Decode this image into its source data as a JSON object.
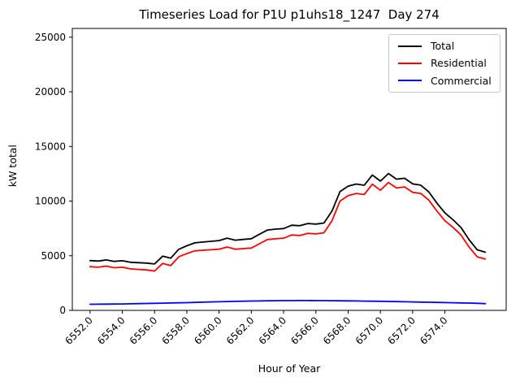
{
  "chart_data": {
    "type": "line",
    "title": "Timeseries Load for P1U p1uhs18_1247  Day 274",
    "xlabel": "Hour of Year",
    "ylabel": "kW total",
    "grid": false,
    "legend_position": "upper right",
    "xlim": [
      6550.9,
      6577.8
    ],
    "ylim": [
      0,
      25800
    ],
    "xtick_values": [
      6552,
      6554,
      6556,
      6558,
      6560,
      6562,
      6564,
      6566,
      6568,
      6570,
      6572,
      6574
    ],
    "xtick_labels": [
      "6552.0",
      "6554.0",
      "6556.0",
      "6558.0",
      "6560.0",
      "6562.0",
      "6564.0",
      "6566.0",
      "6568.0",
      "6570.0",
      "6572.0",
      "6574.0"
    ],
    "ytick_values": [
      0,
      5000,
      10000,
      15000,
      20000,
      25000
    ],
    "ytick_labels": [
      "0",
      "5000",
      "10000",
      "15000",
      "20000",
      "25000"
    ],
    "x": [
      6552.0,
      6552.5,
      6553.0,
      6553.5,
      6554.0,
      6554.5,
      6555.0,
      6555.5,
      6556.0,
      6556.5,
      6557.0,
      6557.5,
      6558.0,
      6558.5,
      6559.0,
      6559.5,
      6560.0,
      6560.5,
      6561.0,
      6561.5,
      6562.0,
      6562.5,
      6563.0,
      6563.5,
      6564.0,
      6564.5,
      6565.0,
      6565.5,
      6566.0,
      6566.5,
      6567.0,
      6567.5,
      6568.0,
      6568.5,
      6569.0,
      6569.5,
      6570.0,
      6570.5,
      6571.0,
      6571.5,
      6572.0,
      6572.5,
      6573.0,
      6573.5,
      6574.0,
      6574.5,
      6575.0,
      6575.5,
      6576.0,
      6576.5
    ],
    "series": [
      {
        "name": "Total",
        "color": "#000000",
        "values": [
          4560,
          4515,
          4620,
          4480,
          4540,
          4400,
          4365,
          4330,
          4245,
          4960,
          4775,
          5590,
          5910,
          6180,
          6250,
          6320,
          6390,
          6610,
          6425,
          6490,
          6555,
          6965,
          7355,
          7435,
          7490,
          7795,
          7750,
          7950,
          7895,
          7990,
          9085,
          10880,
          11370,
          11560,
          11450,
          12390,
          11830,
          12520,
          12005,
          12090,
          11575,
          11460,
          10845,
          9830,
          8915,
          8300,
          7585,
          6470,
          5550,
          5320
        ]
      },
      {
        "name": "Residential",
        "color": "#ff0000",
        "values": [
          4000,
          3950,
          4050,
          3900,
          3950,
          3800,
          3750,
          3700,
          3600,
          4300,
          4100,
          4900,
          5200,
          5450,
          5500,
          5550,
          5600,
          5800,
          5600,
          5650,
          5700,
          6100,
          6480,
          6550,
          6600,
          6900,
          6850,
          7050,
          7000,
          7100,
          8200,
          10000,
          10500,
          10700,
          10600,
          11550,
          11000,
          11700,
          11200,
          11300,
          10800,
          10700,
          10100,
          9100,
          8200,
          7600,
          6900,
          5800,
          4900,
          4700
        ]
      },
      {
        "name": "Commercial",
        "color": "#0000ff",
        "values": [
          560,
          565,
          570,
          580,
          590,
          600,
          615,
          630,
          645,
          660,
          675,
          690,
          710,
          730,
          750,
          770,
          790,
          810,
          825,
          840,
          855,
          865,
          875,
          885,
          890,
          895,
          900,
          900,
          895,
          890,
          885,
          880,
          870,
          860,
          850,
          840,
          830,
          820,
          805,
          790,
          775,
          760,
          745,
          730,
          715,
          700,
          685,
          670,
          650,
          620
        ]
      }
    ]
  }
}
